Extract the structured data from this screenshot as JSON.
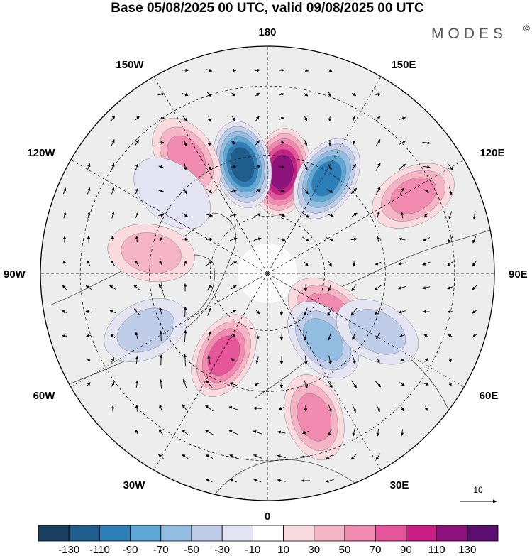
{
  "title": "Base 05/08/2025 00 UTC, valid 09/08/2025 00 UTC",
  "brand": "MODES",
  "brand_mark": "©",
  "longitude_labels": {
    "top": "180",
    "bottom": "0",
    "left": "90W",
    "right": "90E",
    "upper_left_1": "150W",
    "upper_left_2": "120W",
    "upper_right_1": "150E",
    "upper_right_2": "120E",
    "lower_left_1": "60W",
    "lower_left_2": "30W",
    "lower_right_1": "60E",
    "lower_right_2": "30E"
  },
  "vector_reference": {
    "label": "10"
  },
  "colorbar": {
    "colors": [
      "#1b3f5e",
      "#1f5e8c",
      "#2d7fb8",
      "#5ea6d3",
      "#93bde0",
      "#bfcde8",
      "#e3e3f1",
      "#ffffff",
      "#f9dadf",
      "#f4b4c6",
      "#f08aae",
      "#e55599",
      "#c81f85",
      "#8e127c",
      "#5c0f6e"
    ],
    "ticks": [
      "-130",
      "-110",
      "-90",
      "-70",
      "-50",
      "-30",
      "-10",
      "10",
      "30",
      "50",
      "70",
      "90",
      "110",
      "130"
    ]
  },
  "chart_data": {
    "type": "polar-stereographic-anomaly-map",
    "projection": "north polar stereographic",
    "title": "Base 05/08/2025 00 UTC, valid 09/08/2025 00 UTC",
    "field": "anomaly with wind vectors",
    "colorbar_levels": [
      -130,
      -110,
      -90,
      -70,
      -50,
      -30,
      -10,
      10,
      30,
      50,
      70,
      90,
      110,
      130
    ],
    "meridians_deg": [
      0,
      30,
      60,
      90,
      120,
      150,
      180,
      210,
      240,
      270,
      300,
      330
    ],
    "latitude_circles_deg": [
      30,
      50,
      70
    ],
    "anomaly_centers": [
      {
        "lon_deg": 172,
        "lat_deg": 55,
        "value": 120
      },
      {
        "lon_deg": -167,
        "lat_deg": 52,
        "value": -110
      },
      {
        "lon_deg": 148,
        "lat_deg": 52,
        "value": -90
      },
      {
        "lon_deg": -145,
        "lat_deg": 43,
        "value": 60
      },
      {
        "lon_deg": 118,
        "lat_deg": 36,
        "value": 60
      },
      {
        "lon_deg": -100,
        "lat_deg": 50,
        "value": 30
      },
      {
        "lon_deg": -65,
        "lat_deg": 45,
        "value": -40
      },
      {
        "lon_deg": -28,
        "lat_deg": 58,
        "value": 70
      },
      {
        "lon_deg": 58,
        "lat_deg": 65,
        "value": 60
      },
      {
        "lon_deg": 40,
        "lat_deg": 60,
        "value": -50
      },
      {
        "lon_deg": 62,
        "lat_deg": 48,
        "value": -40
      },
      {
        "lon_deg": 18,
        "lat_deg": 40,
        "value": 50
      },
      {
        "lon_deg": -130,
        "lat_deg": 48,
        "value": -20
      }
    ],
    "vector_reference": {
      "label": "10"
    }
  }
}
